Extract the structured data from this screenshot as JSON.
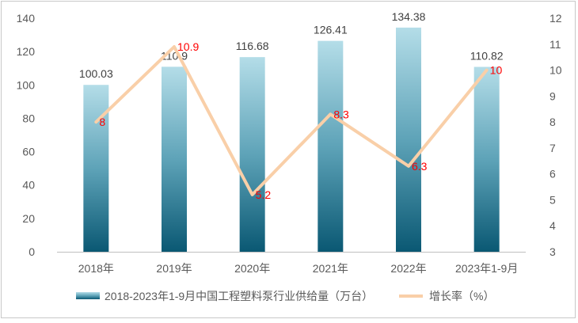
{
  "chart_data": {
    "type": "bar+line",
    "categories": [
      "2018年",
      "2019年",
      "2020年",
      "2021年",
      "2022年",
      "2023年1-9月"
    ],
    "series": [
      {
        "name": "2018-2023年1-9月中国工程塑料泵行业供给量（万台）",
        "type": "bar",
        "axis": "left",
        "values": [
          100.03,
          110.9,
          116.68,
          126.41,
          134.38,
          110.82
        ],
        "labels": [
          "100.03",
          "110.9",
          "116.68",
          "126.41",
          "134.38",
          "110.82"
        ]
      },
      {
        "name": "增长率（%）",
        "type": "line",
        "axis": "right",
        "values": [
          8,
          10.9,
          5.2,
          8.3,
          6.3,
          10
        ],
        "labels": [
          "8",
          "10.9",
          "5.2",
          "8.3",
          "6.3",
          "10"
        ]
      }
    ],
    "y_left": {
      "min": 0,
      "max": 140,
      "step": 20,
      "ticks": [
        "0",
        "20",
        "40",
        "60",
        "80",
        "100",
        "120",
        "140"
      ]
    },
    "y_right": {
      "min": 3,
      "max": 12,
      "step": 1,
      "ticks": [
        "3",
        "4",
        "5",
        "6",
        "7",
        "8",
        "9",
        "10",
        "11",
        "12"
      ]
    },
    "title": "",
    "xlabel": "",
    "ylabel": "",
    "grid": false,
    "legend": "bottom",
    "colors": {
      "bar_top": "#b4dde8",
      "bar_mid": "#5ea3b8",
      "bar_bottom": "#0a5873",
      "line": "#f9cfa8",
      "line_label": "#ff0000",
      "bar_label": "#404040",
      "axis_text": "#595959",
      "axis_line": "#bfbfbf"
    }
  }
}
